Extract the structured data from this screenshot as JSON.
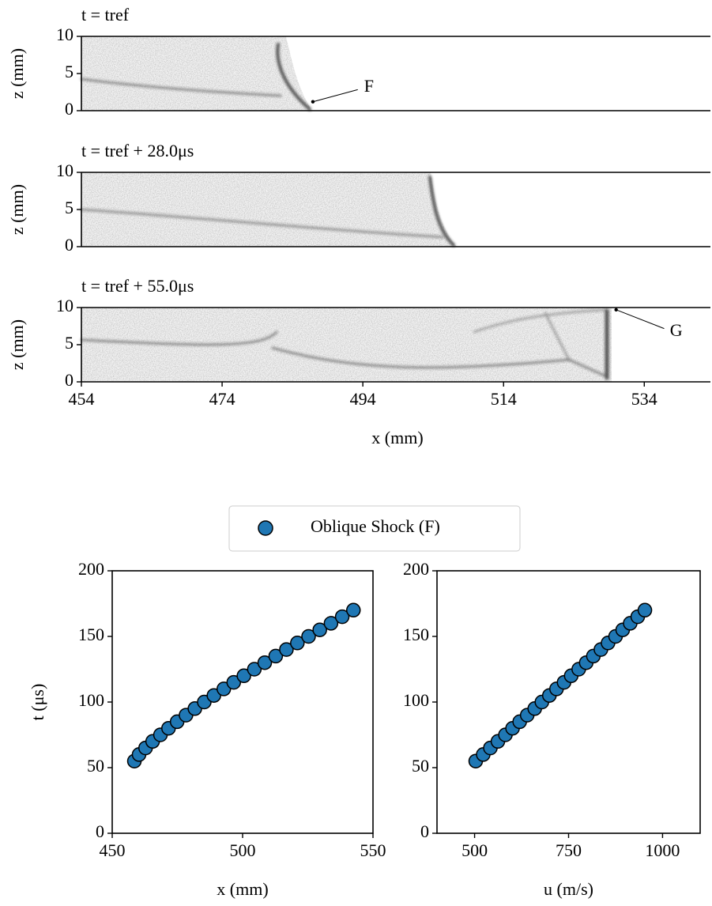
{
  "chart_data": [
    {
      "type": "image",
      "title": "t = tref",
      "ylabel": "z (mm)",
      "ylim": [
        0,
        10
      ],
      "yticks": [
        0,
        5,
        10
      ],
      "xlim": [
        454,
        543.4
      ],
      "annotations": [
        {
          "text": "F",
          "xy": [
            486.9,
            1.2
          ]
        }
      ]
    },
    {
      "type": "image",
      "title": "t = tref + 28.0μs",
      "ylabel": "z (mm)",
      "ylim": [
        0,
        10
      ],
      "yticks": [
        0,
        5,
        10
      ]
    },
    {
      "type": "image",
      "title": "t = tref + 55.0μs",
      "ylabel": "z (mm)",
      "xlabel": "x (mm)",
      "ylim": [
        0,
        10
      ],
      "yticks": [
        0,
        5,
        10
      ],
      "xlim": [
        454,
        543.4
      ],
      "xticks": [
        454,
        474,
        494,
        514,
        534
      ],
      "annotations": [
        {
          "text": "G",
          "xy": [
            530,
            9.7
          ]
        }
      ]
    },
    {
      "type": "scatter",
      "xlabel": "x (mm)",
      "ylabel": "t (μs)",
      "xlim": [
        450,
        550
      ],
      "xticks": [
        450,
        500,
        550
      ],
      "ylim": [
        0,
        200
      ],
      "yticks": [
        0,
        50,
        100,
        150,
        200
      ],
      "legend": "upper center",
      "series": [
        {
          "name": "Oblique Shock (F)",
          "color": "#1f77b4",
          "x": [
            458.5,
            460.3,
            462.8,
            465.5,
            468.5,
            471.6,
            474.9,
            478.3,
            481.7,
            485.3,
            489.0,
            492.8,
            496.6,
            500.5,
            504.5,
            508.5,
            512.7,
            516.8,
            521.0,
            525.3,
            529.6,
            533.9,
            538.2,
            542.5
          ],
          "values": [
            55,
            60,
            65,
            70,
            75,
            80,
            85,
            90,
            95,
            100,
            105,
            110,
            115,
            120,
            125,
            130,
            135,
            140,
            145,
            150,
            155,
            160,
            165,
            170
          ]
        }
      ]
    },
    {
      "type": "scatter",
      "xlabel": "u (m/s)",
      "xlim": [
        400,
        1100
      ],
      "xticks": [
        500,
        750,
        1000
      ],
      "ylim": [
        0,
        200
      ],
      "yticks": [
        0,
        50,
        100,
        150,
        200
      ],
      "series": [
        {
          "color": "#1f77b4",
          "x": [
            503,
            523,
            542,
            562,
            582,
            601,
            620,
            640,
            660,
            679,
            699,
            718,
            738,
            757,
            777,
            797,
            816,
            836,
            855,
            875,
            894,
            914,
            934,
            953
          ],
          "values": [
            55,
            60,
            65,
            70,
            75,
            80,
            85,
            90,
            95,
            100,
            105,
            110,
            115,
            120,
            125,
            130,
            135,
            140,
            145,
            150,
            155,
            160,
            165,
            170
          ]
        }
      ]
    }
  ]
}
